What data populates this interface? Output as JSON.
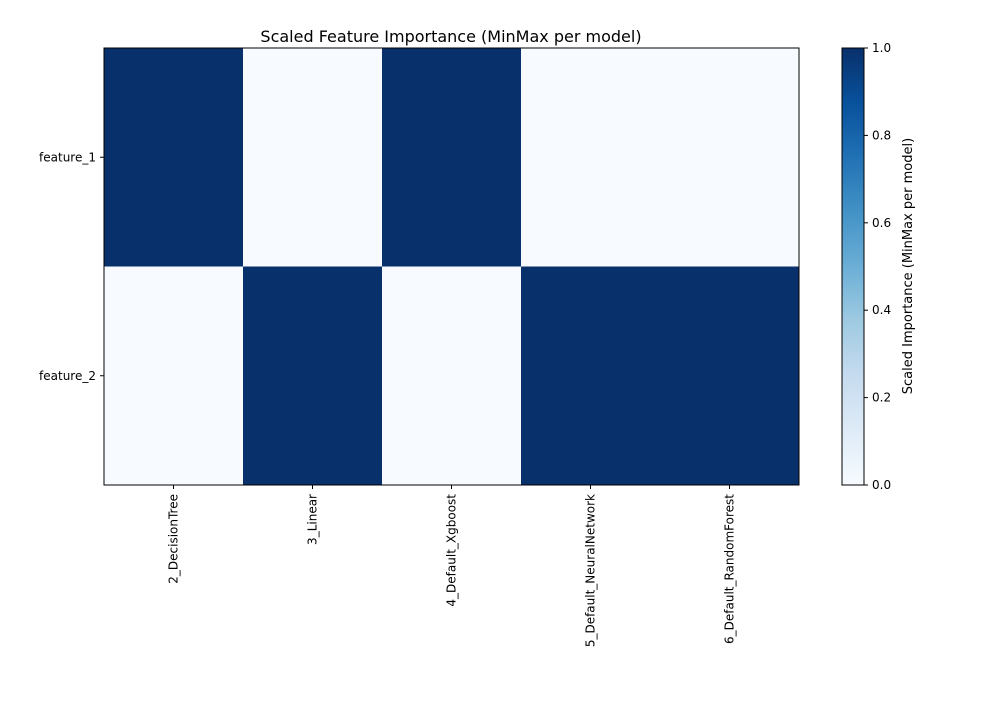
{
  "chart_data": {
    "type": "heatmap",
    "title": "Scaled Feature Importance (MinMax per model)",
    "xlabel": "",
    "ylabel": "",
    "x_categories": [
      "2_DecisionTree",
      "3_Linear",
      "4_Default_Xgboost",
      "5_Default_NeuralNetwork",
      "6_Default_RandomForest"
    ],
    "y_categories": [
      "feature_1",
      "feature_2"
    ],
    "values": [
      [
        1.0,
        0.0,
        1.0,
        0.0,
        0.0
      ],
      [
        0.0,
        1.0,
        0.0,
        1.0,
        1.0
      ]
    ],
    "colormap": "Blues",
    "colorbar": {
      "label": "Scaled Importance (MinMax per model)",
      "range": [
        0.0,
        1.0
      ],
      "ticks": [
        0.0,
        0.2,
        0.4,
        0.6,
        0.8,
        1.0
      ],
      "tick_labels": [
        "0.0",
        "0.2",
        "0.4",
        "0.6",
        "0.8",
        "1.0"
      ]
    },
    "grid": false
  }
}
